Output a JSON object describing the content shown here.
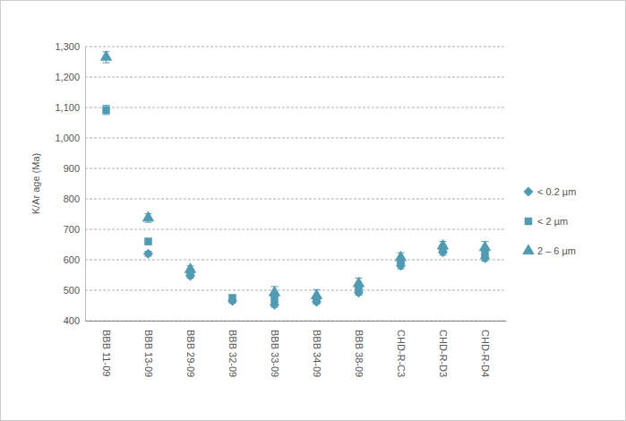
{
  "chart_data": {
    "type": "scatter",
    "y_label": "K/Ar age (Ma)",
    "categories": [
      "BBB 11-09",
      "BBB 13-09",
      "BBB 29-09",
      "BBB 32-09",
      "BBB 33-09",
      "BBB 34-09",
      "BBB 38-09",
      "CHD-R-C3",
      "CHD-R-D3",
      "CHD-R-D4"
    ],
    "series": [
      {
        "name": "< 0.2 µm",
        "color": "#4f9bb3",
        "marker": "diamond",
        "values": [
          null,
          620,
          547,
          465,
          452,
          462,
          492,
          580,
          625,
          605
        ],
        "errors": [
          null,
          8,
          8,
          8,
          8,
          8,
          8,
          10,
          10,
          10
        ]
      },
      {
        "name": "< 2 µm",
        "color": "#4f9bb3",
        "marker": "square",
        "values": [
          1092,
          660,
          558,
          475,
          470,
          470,
          505,
          595,
          635,
          620
        ],
        "errors": [
          15,
          10,
          9,
          9,
          9,
          9,
          9,
          10,
          12,
          12
        ]
      },
      {
        "name": "2 – 6 µm",
        "color": "#4f9bb3",
        "marker": "triangle",
        "values": [
          1265,
          737,
          568,
          null,
          492,
          482,
          522,
          607,
          645,
          640
        ],
        "errors": [
          18,
          14,
          12,
          null,
          20,
          20,
          18,
          16,
          15,
          20
        ]
      }
    ],
    "ylim": [
      400,
      1300
    ],
    "yticks": [
      400,
      500,
      600,
      700,
      800,
      900,
      {
        "value": 1000,
        "label": "1,000"
      },
      {
        "value": 1100,
        "label": "1,100"
      },
      {
        "value": 1200,
        "label": "1,200"
      },
      {
        "value": 1300,
        "label": "1,300"
      }
    ],
    "grid": true,
    "legend": "right"
  }
}
